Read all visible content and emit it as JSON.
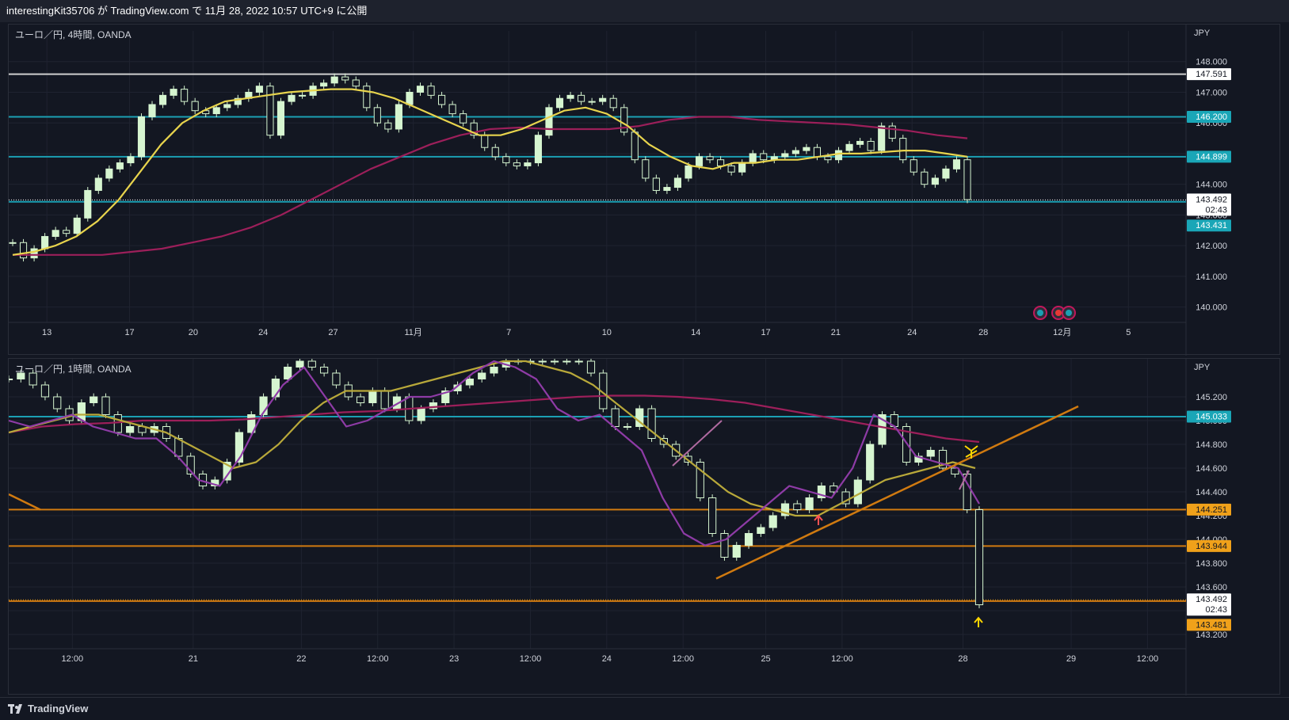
{
  "header": {
    "publish_text": "interestingKit35706 が TradingView.com で 11月 28, 2022 10:57 UTC+9 に公開"
  },
  "colors": {
    "background": "#131722",
    "grid": "#1f2330",
    "up_candle": "#d6f5d0",
    "ema_yellow": "#e8d44d",
    "ema_maroon": "#9c1f5a",
    "ema_purple": "#8e3ba6",
    "ema_olive": "#b8a83a",
    "line_teal": "#1b9fb3",
    "line_orange": "#d07a10",
    "line_white": "#cfcfcf",
    "label_teal": "#1aa6b7",
    "label_orange": "#f0a11a",
    "label_white": "#ffffff"
  },
  "footer": {
    "brand": "TradingView",
    "logo_icon": "tradingview-logo-icon"
  },
  "panes": [
    {
      "id": "pane1",
      "title": "ユーロ／円, 4時間, OANDA",
      "currency": "JPY",
      "ylim": [
        139.5,
        149.0
      ],
      "y_ticks": [
        "148.000",
        "147.000",
        "146.000",
        "145.000",
        "144.000",
        "143.000",
        "142.000",
        "141.000",
        "140.000"
      ],
      "x_ticks": [
        {
          "label": "13",
          "x": 0.03
        },
        {
          "label": "17",
          "x": 0.095
        },
        {
          "label": "20",
          "x": 0.145
        },
        {
          "label": "24",
          "x": 0.2
        },
        {
          "label": "27",
          "x": 0.255
        },
        {
          "label": "11月",
          "x": 0.318
        },
        {
          "label": "7",
          "x": 0.393
        },
        {
          "label": "10",
          "x": 0.47
        },
        {
          "label": "14",
          "x": 0.54
        },
        {
          "label": "17",
          "x": 0.595
        },
        {
          "label": "21",
          "x": 0.65
        },
        {
          "label": "24",
          "x": 0.71
        },
        {
          "label": "28",
          "x": 0.766
        },
        {
          "label": "12月",
          "x": 0.828
        },
        {
          "label": "5",
          "x": 0.88
        }
      ],
      "hlines": [
        {
          "value": 147.591,
          "label": "147.591",
          "style": "solid",
          "color": "#cfcfcf",
          "label_bg": "#ffffff",
          "label_fg": "#131722"
        },
        {
          "value": 146.2,
          "label": "146.200",
          "style": "solid",
          "color": "#1b9fb3",
          "label_bg": "#1aa6b7",
          "label_fg": "#ffffff"
        },
        {
          "value": 144.899,
          "label": "144.899",
          "style": "solid",
          "color": "#1b9fb3",
          "label_bg": "#1aa6b7",
          "label_fg": "#ffffff"
        },
        {
          "value": 143.492,
          "label": "143.492",
          "sublabel": "02:43",
          "style": "dotted",
          "color": "#ffffff",
          "label_bg": "#ffffff",
          "label_fg": "#131722"
        },
        {
          "value": 143.431,
          "label": "143.431",
          "style": "solid",
          "color": "#1b9fb3",
          "label_bg": "#1aa6b7",
          "label_fg": "#ffffff",
          "label_offset": 30
        }
      ],
      "close": [
        142.1,
        141.6,
        141.9,
        142.3,
        142.5,
        142.4,
        142.9,
        143.8,
        144.2,
        144.5,
        144.7,
        144.9,
        146.2,
        146.6,
        146.9,
        147.1,
        146.7,
        146.4,
        146.3,
        146.5,
        146.6,
        146.8,
        147.0,
        147.2,
        145.6,
        146.7,
        146.9,
        146.9,
        147.2,
        147.3,
        147.5,
        147.4,
        147.2,
        146.5,
        146.0,
        145.8,
        146.6,
        147.0,
        147.2,
        146.9,
        146.6,
        146.3,
        146.0,
        145.6,
        145.2,
        144.9,
        144.7,
        144.6,
        144.7,
        145.6,
        146.5,
        146.8,
        146.9,
        146.7,
        146.7,
        146.8,
        146.5,
        145.7,
        144.8,
        144.2,
        143.8,
        143.9,
        144.2,
        144.6,
        144.9,
        144.8,
        144.6,
        144.4,
        144.7,
        145.0,
        144.8,
        144.9,
        145.0,
        145.1,
        145.2,
        144.9,
        144.8,
        145.1,
        145.3,
        145.4,
        145.1,
        145.9,
        145.5,
        144.8,
        144.4,
        144.0,
        144.2,
        144.5,
        144.8,
        143.5
      ],
      "ema_fast": [
        141.7,
        141.8,
        142.0,
        142.3,
        142.8,
        143.5,
        144.4,
        145.3,
        146.0,
        146.4,
        146.7,
        146.8,
        146.9,
        147.0,
        147.05,
        147.1,
        147.1,
        147.0,
        146.8,
        146.5,
        146.2,
        145.9,
        145.6,
        145.6,
        145.8,
        146.1,
        146.4,
        146.5,
        146.3,
        145.9,
        145.3,
        144.9,
        144.6,
        144.5,
        144.7,
        144.7,
        144.8,
        144.8,
        144.9,
        145.0,
        145.0,
        145.05,
        145.1,
        145.1,
        145.0,
        144.9
      ],
      "ema_slow": [
        141.7,
        141.7,
        141.7,
        141.7,
        141.8,
        141.9,
        142.1,
        142.3,
        142.6,
        143.0,
        143.5,
        144.0,
        144.5,
        144.9,
        145.3,
        145.6,
        145.8,
        145.85,
        145.8,
        145.8,
        145.8,
        145.9,
        146.1,
        146.2,
        146.2,
        146.1,
        146.05,
        146.0,
        145.95,
        145.85,
        145.75,
        145.6,
        145.5
      ]
    },
    {
      "id": "pane2",
      "title": "ユーロ／円, 1時間, OANDA",
      "currency": "JPY",
      "ylim": [
        143.08,
        145.52
      ],
      "y_ticks": [
        "145.200",
        "145.000",
        "144.800",
        "144.600",
        "144.400",
        "144.200",
        "144.000",
        "143.800",
        "143.600",
        "143.400",
        "143.200"
      ],
      "x_ticks": [
        {
          "label": "12:00",
          "x": 0.05
        },
        {
          "label": "21",
          "x": 0.145
        },
        {
          "label": "22",
          "x": 0.23
        },
        {
          "label": "12:00",
          "x": 0.29
        },
        {
          "label": "23",
          "x": 0.35
        },
        {
          "label": "12:00",
          "x": 0.41
        },
        {
          "label": "24",
          "x": 0.47
        },
        {
          "label": "12:00",
          "x": 0.53
        },
        {
          "label": "25",
          "x": 0.595
        },
        {
          "label": "12:00",
          "x": 0.655
        },
        {
          "label": "28",
          "x": 0.75
        },
        {
          "label": "29",
          "x": 0.835
        },
        {
          "label": "12:00",
          "x": 0.895
        }
      ],
      "hlines": [
        {
          "value": 145.033,
          "label": "145.033",
          "style": "solid",
          "color": "#1b9fb3",
          "label_bg": "#1aa6b7",
          "label_fg": "#ffffff"
        },
        {
          "value": 144.251,
          "label": "144.251",
          "style": "solid",
          "color": "#d07a10",
          "label_bg": "#f0a11a",
          "label_fg": "#131722"
        },
        {
          "value": 143.944,
          "label": "143.944",
          "style": "solid",
          "color": "#d07a10",
          "label_bg": "#f0a11a",
          "label_fg": "#131722"
        },
        {
          "value": 143.492,
          "label": "143.492",
          "sublabel": "02:43",
          "style": "dotted",
          "color": "#f0a11a",
          "label_bg": "#ffffff",
          "label_fg": "#131722"
        },
        {
          "value": 143.481,
          "label": "143.481",
          "style": "solid",
          "color": "#d07a10",
          "label_bg": "#f0a11a",
          "label_fg": "#131722",
          "label_offset": 30
        }
      ],
      "close": [
        145.35,
        145.4,
        145.3,
        145.2,
        145.1,
        145.0,
        145.15,
        145.2,
        145.05,
        144.9,
        144.95,
        144.9,
        144.95,
        144.85,
        144.7,
        144.55,
        144.45,
        144.5,
        144.65,
        144.9,
        145.05,
        145.2,
        145.35,
        145.45,
        145.5,
        145.45,
        145.4,
        145.3,
        145.2,
        145.15,
        145.25,
        145.1,
        145.2,
        145.0,
        145.1,
        145.15,
        145.25,
        145.3,
        145.35,
        145.4,
        145.45,
        145.5,
        145.5,
        145.5,
        145.5,
        145.5,
        145.5,
        145.5,
        145.4,
        145.1,
        144.95,
        144.95,
        145.1,
        144.85,
        144.8,
        144.7,
        144.65,
        144.35,
        144.05,
        143.85,
        143.95,
        144.05,
        144.1,
        144.2,
        144.3,
        144.25,
        144.35,
        144.45,
        144.4,
        144.3,
        144.5,
        144.8,
        145.05,
        144.95,
        144.65,
        144.7,
        144.75,
        144.6,
        144.55,
        144.25,
        143.45
      ],
      "ema_purple": [
        145.0,
        144.95,
        145.0,
        145.05,
        144.95,
        144.9,
        144.85,
        144.85,
        144.7,
        144.5,
        144.45,
        144.7,
        145.05,
        145.3,
        145.45,
        145.2,
        144.95,
        145.0,
        145.1,
        145.2,
        145.2,
        145.25,
        145.4,
        145.5,
        145.45,
        145.35,
        145.1,
        145.0,
        145.05,
        144.9,
        144.75,
        144.35,
        144.05,
        143.95,
        144.0,
        144.15,
        144.3,
        144.45,
        144.4,
        144.35,
        144.6,
        145.05,
        144.95,
        144.7,
        144.65,
        144.6,
        144.3
      ],
      "ema_olive": [
        144.9,
        144.95,
        145.0,
        145.05,
        145.05,
        145.0,
        144.95,
        144.9,
        144.8,
        144.7,
        144.6,
        144.65,
        144.8,
        145.0,
        145.15,
        145.25,
        145.25,
        145.25,
        145.3,
        145.35,
        145.4,
        145.45,
        145.5,
        145.5,
        145.45,
        145.4,
        145.3,
        145.15,
        145.0,
        144.85,
        144.7,
        144.55,
        144.4,
        144.3,
        144.25,
        144.2,
        144.2,
        144.3,
        144.4,
        144.5,
        144.55,
        144.6,
        144.65,
        144.6
      ],
      "ema_maroon": [
        144.9,
        144.95,
        144.97,
        144.98,
        145.0,
        145.0,
        145.0,
        145.01,
        145.03,
        145.05,
        145.07,
        145.08,
        145.1,
        145.12,
        145.14,
        145.16,
        145.18,
        145.2,
        145.21,
        145.21,
        145.2,
        145.18,
        145.15,
        145.1,
        145.05,
        145.0,
        144.95,
        144.9,
        144.85,
        144.82
      ]
    }
  ]
}
